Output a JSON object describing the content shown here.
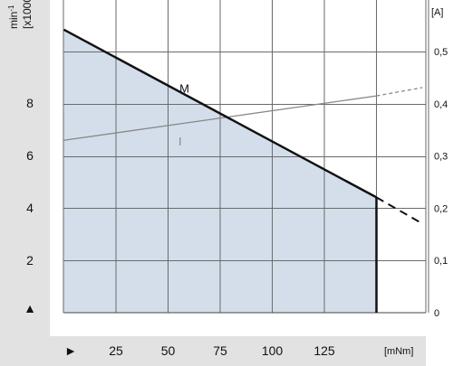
{
  "chart_data": {
    "type": "line",
    "title": "",
    "ylabel_left": "min⁻¹ [x1000]",
    "ylabel_left_line1": "min",
    "ylabel_left_sup": "-1",
    "ylabel_left_line2": "[x1000]",
    "ylabel_right": "[A]",
    "xlabel": "[mNm]",
    "x_ticks": [
      "25",
      "50",
      "75",
      "100",
      "125"
    ],
    "x_tick_values": [
      25,
      50,
      75,
      100,
      125
    ],
    "y_left_ticks": [
      "2",
      "4",
      "6",
      "8"
    ],
    "y_left_tick_values": [
      2,
      4,
      6,
      8
    ],
    "y_right_ticks": [
      "0",
      "0,1",
      "0,2",
      "0,3",
      "0,4",
      "0,5"
    ],
    "y_right_tick_values": [
      0,
      0.1,
      0.2,
      0.3,
      0.4,
      0.5
    ],
    "xlim": [
      0,
      175
    ],
    "ylim_left": [
      0,
      12
    ],
    "ylim_right": [
      0,
      0.6
    ],
    "grid": true,
    "series": [
      {
        "name": "M",
        "axis": "left",
        "points": [
          [
            0,
            10.8
          ],
          [
            150,
            4.4
          ]
        ],
        "dashed_extension": [
          [
            150,
            4.4
          ],
          [
            172,
            3.4
          ]
        ],
        "cutoff_x": 150,
        "fill_under": true,
        "color": "#111111"
      },
      {
        "name": "I",
        "axis": "right",
        "points": [
          [
            0,
            0.33
          ],
          [
            150,
            0.415
          ]
        ],
        "dashed_extension": [
          [
            150,
            0.415
          ],
          [
            172,
            0.431
          ]
        ],
        "color": "#888888"
      }
    ],
    "colors": {
      "fill": "#d4deea",
      "grid": "#6a6a6a",
      "panel": "#e2e2e2"
    },
    "up_arrow_icon": "▲",
    "right_arrow_icon": "►"
  }
}
